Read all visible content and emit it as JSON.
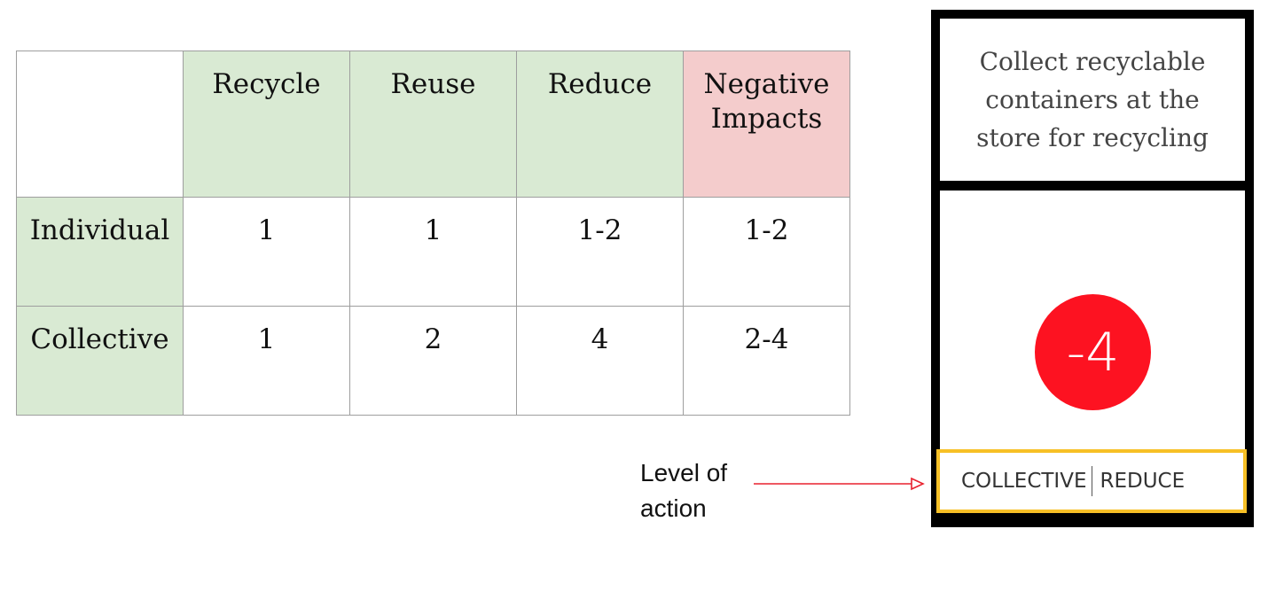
{
  "table": {
    "columns": [
      "",
      "Recycle",
      "Reuse",
      "Reduce",
      "Negative Impacts"
    ],
    "rows": [
      {
        "label": "Individual",
        "values": [
          "1",
          "1",
          "1-2",
          "1-2"
        ]
      },
      {
        "label": "Collective",
        "values": [
          "1",
          "2",
          "4",
          "2-4"
        ]
      }
    ],
    "colors": {
      "header_green": "#d9ead3",
      "header_pink": "#f4cccc"
    }
  },
  "card": {
    "text": "Collect recyclable containers at the store for recycling",
    "score": "-4",
    "level": "COLLECTIVE",
    "category": "REDUCE",
    "colors": {
      "frame": "#000000",
      "score_circle": "#fd1221",
      "highlight": "#f7c026"
    }
  },
  "callout": {
    "line1": "Level of",
    "line2": "action",
    "arrow_color": "#e8212e"
  }
}
